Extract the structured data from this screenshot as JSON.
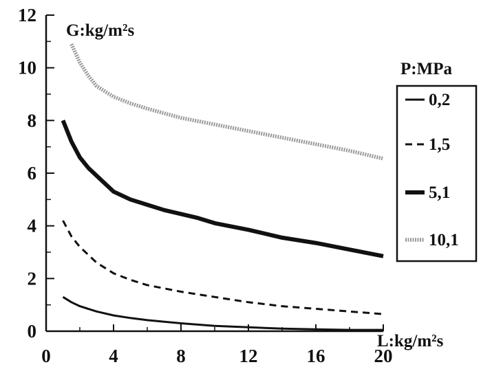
{
  "chart_data": {
    "type": "line",
    "title": "",
    "xlabel": "L:kg/m²s",
    "ylabel": "G:kg/m²s",
    "xlim": [
      0,
      20
    ],
    "ylim": [
      0,
      12
    ],
    "xticks": [
      0,
      4,
      8,
      12,
      16,
      20
    ],
    "yticks": [
      0,
      2,
      4,
      6,
      8,
      10,
      12
    ],
    "grid": false,
    "legend": {
      "title": "P:MPa",
      "placement": "right"
    },
    "series": [
      {
        "name": "0,2",
        "style": "solid",
        "color": "#111111",
        "x": [
          1,
          1.5,
          2,
          3,
          4,
          5,
          6,
          8,
          10,
          12,
          14,
          16,
          18,
          20
        ],
        "y": [
          1.3,
          1.1,
          0.95,
          0.75,
          0.6,
          0.5,
          0.42,
          0.3,
          0.2,
          0.15,
          0.1,
          0.07,
          0.05,
          0.05
        ]
      },
      {
        "name": "1,5",
        "style": "dashed",
        "color": "#111111",
        "x": [
          1,
          1.5,
          2,
          3,
          4,
          5,
          6,
          8,
          10,
          12,
          14,
          16,
          18,
          20
        ],
        "y": [
          4.2,
          3.6,
          3.2,
          2.6,
          2.2,
          1.95,
          1.75,
          1.5,
          1.3,
          1.1,
          0.95,
          0.85,
          0.75,
          0.65
        ]
      },
      {
        "name": "5,1",
        "style": "bold",
        "color": "#111111",
        "x": [
          1,
          1.5,
          2,
          2.5,
          3,
          4,
          5,
          6,
          7,
          8,
          9,
          10,
          12,
          14,
          16,
          18,
          20
        ],
        "y": [
          8.0,
          7.2,
          6.6,
          6.2,
          5.9,
          5.3,
          5.0,
          4.8,
          4.6,
          4.45,
          4.3,
          4.1,
          3.85,
          3.55,
          3.35,
          3.1,
          2.85
        ]
      },
      {
        "name": "10,1",
        "style": "gray-dotted",
        "color": "#9a9a9a",
        "x": [
          1.5,
          2,
          2.5,
          3,
          4,
          5,
          6,
          8,
          10,
          12,
          14,
          16,
          18,
          20
        ],
        "y": [
          10.9,
          10.2,
          9.7,
          9.3,
          8.9,
          8.65,
          8.45,
          8.1,
          7.85,
          7.6,
          7.35,
          7.1,
          6.85,
          6.55
        ]
      }
    ]
  }
}
